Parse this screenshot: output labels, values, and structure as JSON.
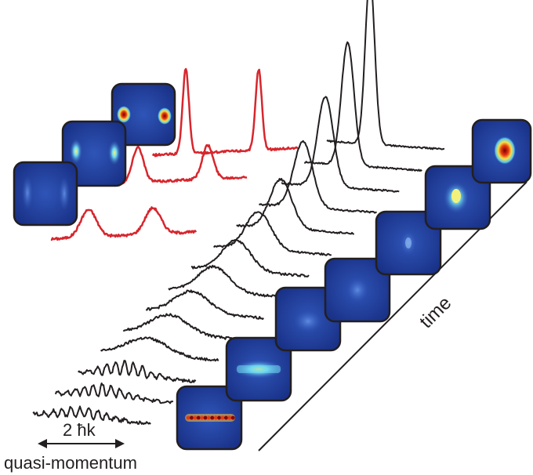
{
  "labels": {
    "scale_bar": "2 ħk",
    "x_axis": "quasi-momentum",
    "time_axis": "time"
  },
  "colors": {
    "trace_black": "#231f20",
    "trace_red": "#d7262d",
    "panel_bg": "#1f3b9a",
    "panel_border": "#231f20"
  }
}
